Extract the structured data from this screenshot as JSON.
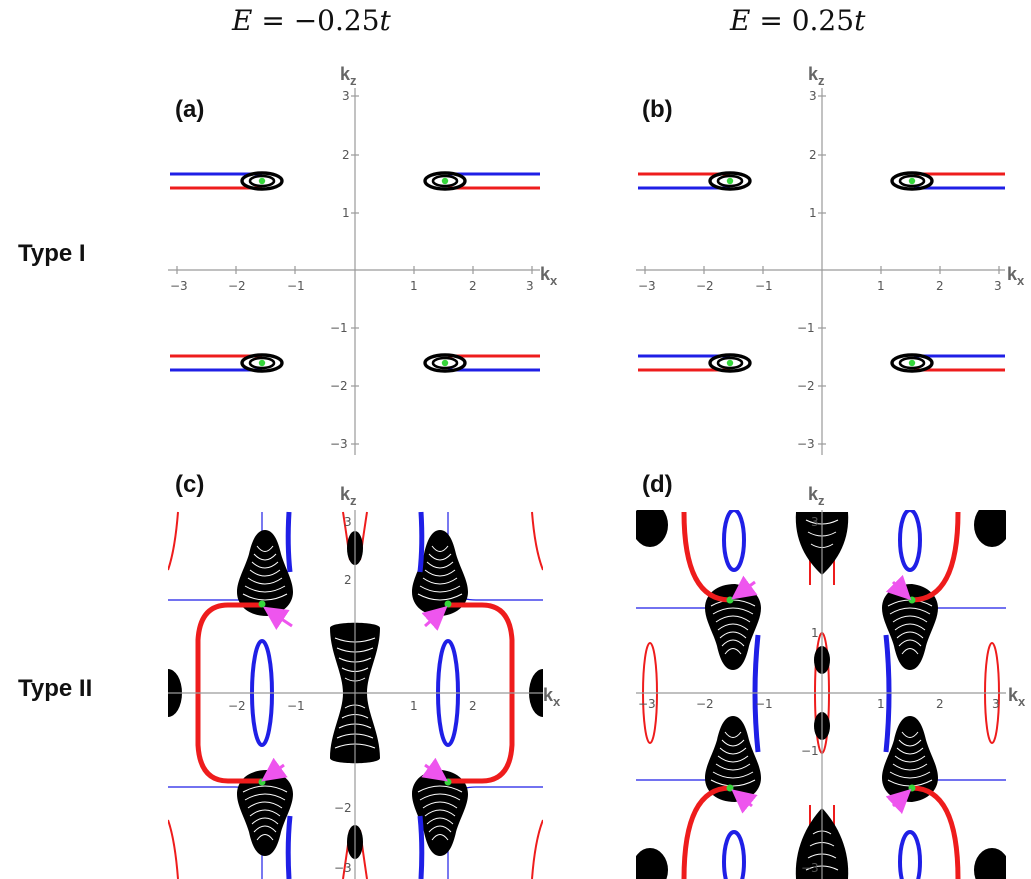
{
  "figure": {
    "col_headers": [
      {
        "prefix": "E",
        "rest": " = −0.25",
        "unit": "t"
      },
      {
        "prefix": "E",
        "rest": " = 0.25",
        "unit": "t"
      }
    ],
    "row_labels": [
      "Type I",
      "Type II"
    ],
    "panel_labels": [
      "(a)",
      "(b)",
      "(c)",
      "(d)"
    ],
    "axis_labels": {
      "x": "k",
      "x_sub": "x",
      "z": "k",
      "z_sub": "z"
    },
    "ticks": [
      "−3",
      "−2",
      "−1",
      "1",
      "2",
      "3"
    ]
  },
  "colors": {
    "red": "#ee1c1c",
    "blue": "#1f1fe6",
    "black": "#000000",
    "green": "#36d63b",
    "magenta": "#ee55ee",
    "axis": "#9a9a9a"
  },
  "chart_data": [
    {
      "type": "contour",
      "panel": "(a)",
      "energy": "−0.25t",
      "xrange": [
        -3,
        3
      ],
      "zrange": [
        -3,
        3
      ],
      "pocket_centers": [
        [
          -1.57,
          1.57
        ],
        [
          1.57,
          1.57
        ],
        [
          -1.57,
          -1.57
        ],
        [
          1.57,
          -1.57
        ]
      ],
      "line_pairs_z": [
        1.45,
        1.7
      ]
    },
    {
      "type": "contour",
      "panel": "(b)",
      "energy": "0.25t",
      "xrange": [
        -3,
        3
      ],
      "zrange": [
        -3,
        3
      ],
      "pocket_centers": [
        [
          -1.57,
          1.57
        ],
        [
          1.57,
          1.57
        ],
        [
          -1.57,
          -1.57
        ],
        [
          1.57,
          -1.57
        ]
      ],
      "line_pairs_z": [
        1.45,
        1.7
      ]
    },
    {
      "type": "contour",
      "panel": "(c)",
      "energy": "−0.25t",
      "xrange": [
        -3.14,
        3.14
      ],
      "zrange": [
        -3.14,
        3.14
      ],
      "nodes": [
        [
          -1.57,
          1.57
        ],
        [
          1.57,
          1.57
        ],
        [
          -1.57,
          -1.57
        ],
        [
          1.57,
          -1.57
        ]
      ]
    },
    {
      "type": "contour",
      "panel": "(d)",
      "energy": "0.25t",
      "xrange": [
        -3.14,
        3.14
      ],
      "zrange": [
        -3.14,
        3.14
      ],
      "nodes": [
        [
          -1.57,
          1.57
        ],
        [
          1.57,
          1.57
        ],
        [
          -1.57,
          -1.57
        ],
        [
          1.57,
          -1.57
        ]
      ]
    }
  ]
}
